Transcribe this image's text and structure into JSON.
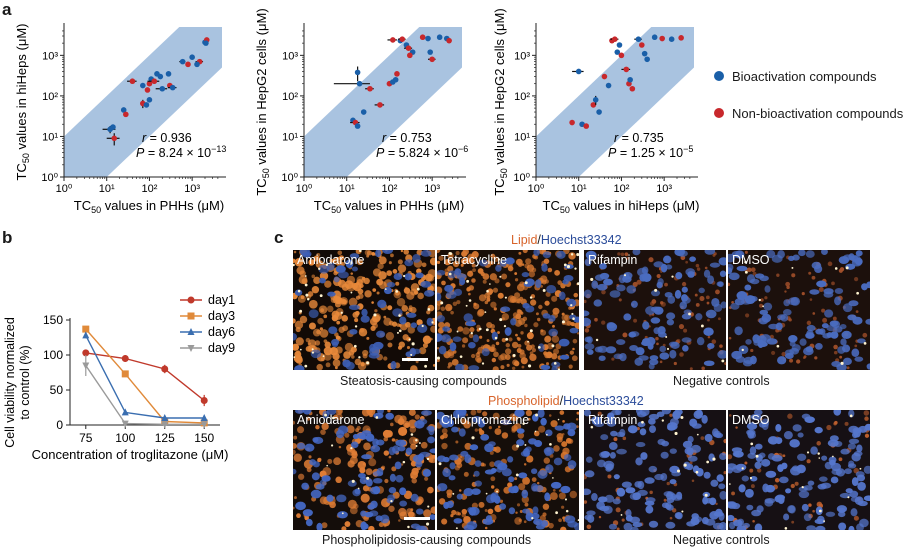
{
  "panel_letters": {
    "a": "a",
    "b": "b",
    "c": "c"
  },
  "chart_data": [
    {
      "type": "scatter",
      "panel": "a",
      "xlabel_main": "TC",
      "xlabel_sub": "50",
      "xlabel_rest": " values in PHHs (μM)",
      "ylabel_main": "TC",
      "ylabel_sub": "50",
      "ylabel_rest": " values in hiHeps (μM)",
      "xlim": [
        1,
        5000
      ],
      "ylim": [
        1,
        5000
      ],
      "log_scale": true,
      "ticks": [
        {
          "v": 1,
          "label": "10⁰"
        },
        {
          "v": 10,
          "label": "10¹"
        },
        {
          "v": 100,
          "label": "10²"
        },
        {
          "v": 1000,
          "label": "10³"
        }
      ],
      "stats": {
        "r_label": "r = 0.936",
        "p_prefix": "P = ",
        "p_value": "8.24 × 10",
        "p_exp": "−13"
      },
      "points": [
        {
          "x": 12,
          "y": 15,
          "c": "b",
          "ex": 4,
          "ey": 3
        },
        {
          "x": 15,
          "y": 9,
          "c": "r",
          "ex": 5,
          "ey": 3
        },
        {
          "x": 14,
          "y": 17,
          "c": "b"
        },
        {
          "x": 25,
          "y": 45,
          "c": "b",
          "ey": 5
        },
        {
          "x": 28,
          "y": 35,
          "c": "r"
        },
        {
          "x": 40,
          "y": 230,
          "c": "r",
          "ex": 10
        },
        {
          "x": 70,
          "y": 180,
          "c": "b"
        },
        {
          "x": 100,
          "y": 200,
          "c": "r"
        },
        {
          "x": 90,
          "y": 140,
          "c": "r"
        },
        {
          "x": 110,
          "y": 260,
          "c": "b"
        },
        {
          "x": 130,
          "y": 230,
          "c": "r",
          "ex": 40
        },
        {
          "x": 70,
          "y": 65,
          "c": "r",
          "ey": 15
        },
        {
          "x": 85,
          "y": 60,
          "c": "b"
        },
        {
          "x": 100,
          "y": 80,
          "c": "b"
        },
        {
          "x": 150,
          "y": 350,
          "c": "b"
        },
        {
          "x": 180,
          "y": 300,
          "c": "b"
        },
        {
          "x": 200,
          "y": 150,
          "c": "b",
          "ex": 60
        },
        {
          "x": 280,
          "y": 350,
          "c": "b"
        },
        {
          "x": 300,
          "y": 180,
          "c": "r"
        },
        {
          "x": 350,
          "y": 160,
          "c": "b",
          "ex": 80
        },
        {
          "x": 600,
          "y": 700,
          "c": "b",
          "ex": 100
        },
        {
          "x": 800,
          "y": 600,
          "c": "r"
        },
        {
          "x": 1000,
          "y": 900,
          "c": "b"
        },
        {
          "x": 1500,
          "y": 700,
          "c": "r",
          "ex": 300
        },
        {
          "x": 1300,
          "y": 600,
          "c": "b"
        },
        {
          "x": 2000,
          "y": 2100,
          "c": "b"
        },
        {
          "x": 2200,
          "y": 2400,
          "c": "r"
        },
        {
          "x": 2100,
          "y": 2000,
          "c": "b"
        }
      ]
    },
    {
      "type": "scatter",
      "panel": "a",
      "xlabel_main": "TC",
      "xlabel_sub": "50",
      "xlabel_rest": " values in PHHs (μM)",
      "ylabel_main": "TC",
      "ylabel_sub": "50",
      "ylabel_rest": " values in HepG2 cells (μM)",
      "xlim": [
        1,
        5000
      ],
      "ylim": [
        1,
        5000
      ],
      "log_scale": true,
      "ticks": [
        {
          "v": 1,
          "label": "10⁰"
        },
        {
          "v": 10,
          "label": "10¹"
        },
        {
          "v": 100,
          "label": "10²"
        },
        {
          "v": 1000,
          "label": "10³"
        }
      ],
      "stats": {
        "r_label": "r = 0.753",
        "p_prefix": "P = ",
        "p_value": " 5.824 × 10",
        "p_exp": "−6"
      },
      "points": [
        {
          "x": 14,
          "y": 25,
          "c": "b"
        },
        {
          "x": 16,
          "y": 22,
          "c": "r",
          "ex": 4
        },
        {
          "x": 18,
          "y": 18,
          "c": "b"
        },
        {
          "x": 18,
          "y": 380,
          "c": "b",
          "ey": 150
        },
        {
          "x": 20,
          "y": 200,
          "c": "b",
          "ex": 15
        },
        {
          "x": 25,
          "y": 40,
          "c": "b"
        },
        {
          "x": 35,
          "y": 150,
          "c": "r",
          "ex": 8
        },
        {
          "x": 60,
          "y": 60,
          "c": "r",
          "ex": 15
        },
        {
          "x": 100,
          "y": 200,
          "c": "r"
        },
        {
          "x": 120,
          "y": 220,
          "c": "b"
        },
        {
          "x": 140,
          "y": 250,
          "c": "b"
        },
        {
          "x": 150,
          "y": 350,
          "c": "r"
        },
        {
          "x": 120,
          "y": 2400,
          "c": "r",
          "ex": 30
        },
        {
          "x": 180,
          "y": 2300,
          "c": "b"
        },
        {
          "x": 200,
          "y": 2500,
          "c": "r",
          "ex": 40
        },
        {
          "x": 250,
          "y": 1800,
          "c": "b"
        },
        {
          "x": 280,
          "y": 1500,
          "c": "r",
          "ex": 60
        },
        {
          "x": 350,
          "y": 1200,
          "c": "b"
        },
        {
          "x": 300,
          "y": 1000,
          "c": "r"
        },
        {
          "x": 600,
          "y": 2800,
          "c": "r"
        },
        {
          "x": 800,
          "y": 2600,
          "c": "b"
        },
        {
          "x": 900,
          "y": 1200,
          "c": "b"
        },
        {
          "x": 1000,
          "y": 800,
          "c": "r",
          "ex": 200
        },
        {
          "x": 1500,
          "y": 2800,
          "c": "b"
        },
        {
          "x": 2200,
          "y": 2600,
          "c": "b"
        },
        {
          "x": 2500,
          "y": 2300,
          "c": "r"
        }
      ]
    },
    {
      "type": "scatter",
      "panel": "a",
      "xlabel_main": "TC",
      "xlabel_sub": "50",
      "xlabel_rest": " values in hiHeps (μM)",
      "ylabel_main": "TC",
      "ylabel_sub": "50",
      "ylabel_rest": " values in HepG2 cells (μM)",
      "xlim": [
        1,
        5000
      ],
      "ylim": [
        1,
        5000
      ],
      "log_scale": true,
      "ticks": [
        {
          "v": 1,
          "label": "10⁰"
        },
        {
          "v": 10,
          "label": "10¹"
        },
        {
          "v": 100,
          "label": "10²"
        },
        {
          "v": 1000,
          "label": "10³"
        }
      ],
      "stats": {
        "r_label": "r = 0.735",
        "p_prefix": "P = ",
        "p_value": "1.25 × 10",
        "p_exp": "−5"
      },
      "legend": [
        {
          "label": "Bioactivation compounds",
          "color": "#1a5fa8"
        },
        {
          "label": "Non-bioactivation compounds",
          "color": "#c8282c"
        }
      ],
      "points": [
        {
          "x": 7,
          "y": 22,
          "c": "r"
        },
        {
          "x": 10,
          "y": 400,
          "c": "b",
          "ex": 3
        },
        {
          "x": 12,
          "y": 20,
          "c": "b"
        },
        {
          "x": 15,
          "y": 18,
          "c": "r"
        },
        {
          "x": 22,
          "y": 60,
          "c": "r"
        },
        {
          "x": 25,
          "y": 80,
          "c": "b",
          "ey": 20
        },
        {
          "x": 30,
          "y": 40,
          "c": "b"
        },
        {
          "x": 40,
          "y": 300,
          "c": "r"
        },
        {
          "x": 50,
          "y": 180,
          "c": "b"
        },
        {
          "x": 60,
          "y": 2300,
          "c": "r"
        },
        {
          "x": 70,
          "y": 2500,
          "c": "r",
          "ex": 15
        },
        {
          "x": 80,
          "y": 1200,
          "c": "b"
        },
        {
          "x": 90,
          "y": 1800,
          "c": "b"
        },
        {
          "x": 100,
          "y": 1000,
          "c": "r"
        },
        {
          "x": 130,
          "y": 450,
          "c": "r",
          "ex": 30
        },
        {
          "x": 150,
          "y": 200,
          "c": "r"
        },
        {
          "x": 160,
          "y": 250,
          "c": "b"
        },
        {
          "x": 180,
          "y": 150,
          "c": "r"
        },
        {
          "x": 250,
          "y": 2500,
          "c": "b",
          "ex": 50
        },
        {
          "x": 300,
          "y": 1800,
          "c": "r"
        },
        {
          "x": 350,
          "y": 1100,
          "c": "b"
        },
        {
          "x": 400,
          "y": 800,
          "c": "b"
        },
        {
          "x": 600,
          "y": 2800,
          "c": "b"
        },
        {
          "x": 900,
          "y": 2600,
          "c": "r"
        },
        {
          "x": 1500,
          "y": 2500,
          "c": "b"
        },
        {
          "x": 2500,
          "y": 2700,
          "c": "r"
        }
      ]
    },
    {
      "type": "line",
      "panel": "b",
      "xlabel": "Concentration of troglitazone (μM)",
      "ylabel_line1": "Cell viability normalized",
      "ylabel_line2": "to control (%)",
      "categories": [
        "75",
        "100",
        "125",
        "150"
      ],
      "x": [
        75,
        100,
        125,
        150
      ],
      "xlim": [
        65,
        160
      ],
      "ylim": [
        0,
        150
      ],
      "yticks": [
        0,
        50,
        100,
        150
      ],
      "series": [
        {
          "name": "day1",
          "color": "#c0392b",
          "marker": "circle",
          "values": [
            103,
            95,
            80,
            35
          ],
          "errors": [
            0,
            5,
            6,
            8
          ]
        },
        {
          "name": "day3",
          "color": "#e08a3a",
          "marker": "square",
          "values": [
            137,
            73,
            5,
            3
          ],
          "errors": [
            3,
            4,
            2,
            1
          ]
        },
        {
          "name": "day6",
          "color": "#3a6eb0",
          "marker": "triangle",
          "values": [
            128,
            18,
            10,
            10
          ],
          "errors": [
            4,
            3,
            2,
            2
          ]
        },
        {
          "name": "day9",
          "color": "#9a9a9a",
          "marker": "triangle-down",
          "values": [
            85,
            2,
            1,
            1
          ],
          "errors": [
            15,
            1,
            0,
            0
          ]
        }
      ]
    }
  ],
  "panel_c": {
    "top_title": {
      "part1": "Lipid",
      "slash": "/",
      "part2": "Hoechst33342"
    },
    "bottom_title": {
      "part1": "Phospholipid",
      "slash": "/",
      "part2": "Hoechst33342"
    },
    "stain_colors": {
      "lipid": "#d8642b",
      "hoechst": "#2b4c9a"
    },
    "top_images": [
      "Amiodarone",
      "Tetracycline",
      "Rifampin",
      "DMSO"
    ],
    "bottom_images": [
      "Amiodarone",
      "Chlorpromazine",
      "Rifampin",
      "DMSO"
    ],
    "top_captions": {
      "left": "Steatosis-causing compounds",
      "right": "Negative controls"
    },
    "bottom_captions": {
      "left": "Phospholipidosis-causing compounds",
      "right": "Negative controls"
    }
  },
  "colors": {
    "blue": "#1a5fa8",
    "red": "#c8282c",
    "band": "#a9c3e0"
  }
}
